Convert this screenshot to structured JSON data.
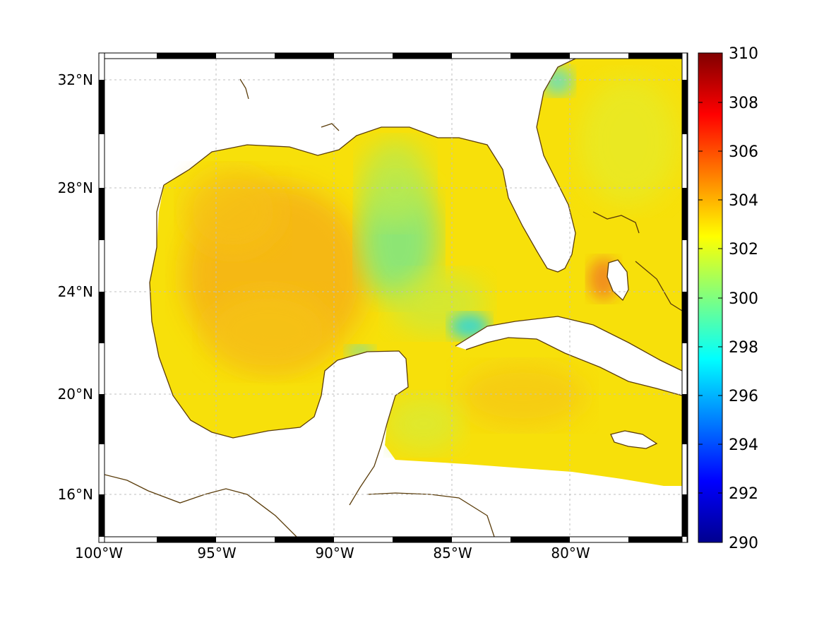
{
  "map": {
    "lon_range": [
      -100,
      -75
    ],
    "lat_range": [
      14.3,
      33
    ],
    "x_ticks": [
      {
        "lon": -100,
        "label": "100°W"
      },
      {
        "lon": -95,
        "label": "95°W"
      },
      {
        "lon": -90,
        "label": "90°W"
      },
      {
        "lon": -85,
        "label": "85°W"
      },
      {
        "lon": -80,
        "label": "80°W"
      }
    ],
    "y_ticks": [
      {
        "lat": 32,
        "label": "32°N"
      },
      {
        "lat": 28,
        "label": "28°N"
      },
      {
        "lat": 24,
        "label": "24°N"
      },
      {
        "lat": 20,
        "label": "20°N"
      },
      {
        "lat": 16,
        "label": "16°N"
      }
    ],
    "grid": true,
    "coast_color": "#5a3c0a"
  },
  "colorbar": {
    "range": [
      290,
      310
    ],
    "colormap": "jet",
    "ticks": [
      "310",
      "308",
      "306",
      "304",
      "302",
      "300",
      "298",
      "296",
      "294",
      "292",
      "290"
    ]
  }
}
